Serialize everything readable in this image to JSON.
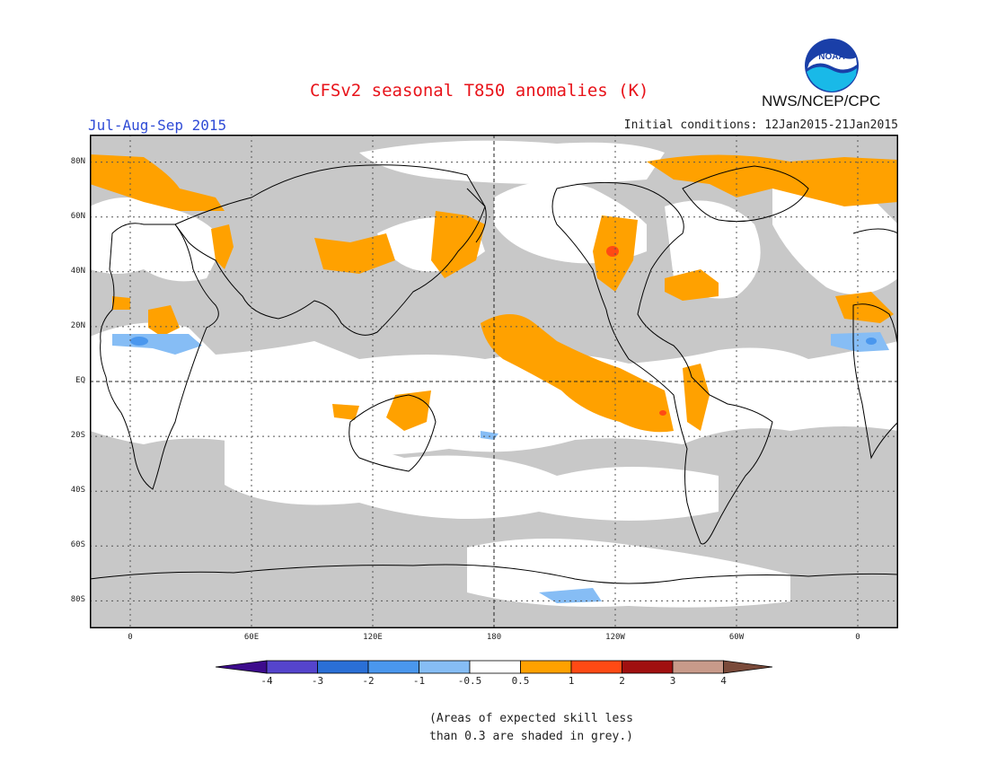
{
  "header": {
    "title": "CFSv2 seasonal T850 anomalies (K)",
    "season": "Jul-Aug-Sep 2015",
    "initial_conditions": "Initial conditions: 12Jan2015-21Jan2015",
    "agency": "NWS/NCEP/CPC",
    "logo_text": "NOAA"
  },
  "map": {
    "lat_labels": [
      "80N",
      "60N",
      "40N",
      "20N",
      "EQ",
      "20S",
      "40S",
      "60S",
      "80S"
    ],
    "lat_values": [
      80,
      60,
      40,
      20,
      0,
      -20,
      -40,
      -60,
      -80
    ],
    "lon_labels": [
      "0",
      "60E",
      "120E",
      "180",
      "120W",
      "60W",
      "0"
    ],
    "lon_values": [
      0,
      60,
      120,
      180,
      240,
      300,
      360
    ],
    "lat_range": [
      -90,
      90
    ],
    "lon_range": [
      -20,
      380
    ],
    "gridlines": true,
    "colors": {
      "grey_skill": "#c8c8c8",
      "ocean_white": "#ffffff",
      "coast": "#000000"
    }
  },
  "legend": {
    "labels": [
      "-4",
      "-3",
      "-2",
      "-1",
      "-0.5",
      "0.5",
      "1",
      "2",
      "3",
      "4"
    ],
    "colors": [
      "#3d0b8c",
      "#5544cc",
      "#2a6fd6",
      "#4a97ee",
      "#86bdf5",
      "#ffffff",
      "#ffa100",
      "#ff4a14",
      "#a01010",
      "#c89a8a",
      "#7a4a3a"
    ]
  },
  "note": {
    "line1": "(Areas of expected skill less",
    "line2": "than 0.3 are shaded in grey.)"
  }
}
